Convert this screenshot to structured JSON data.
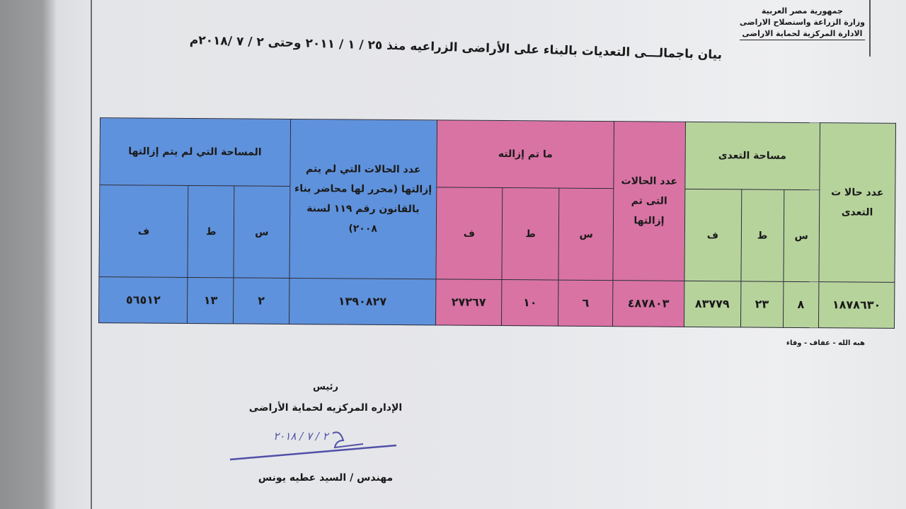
{
  "header": {
    "lines": [
      "جمهورية مصر العربية",
      "وزارة الزراعة واستصلاح الاراضى",
      "الادارة المركزية لحماية الاراضى"
    ]
  },
  "title": "بيان باجمالـــى  التعديات بالبناء على الأراضى الزراعيه منذ ٢٥ / ١ / ٢٠١١ وحتى ٢ / ٧ /٢٠١٨م",
  "table": {
    "colors": {
      "green": "#b7d39c",
      "pink": "#d973a4",
      "blue": "#5f92dc"
    },
    "headers": {
      "total_cases": "عدد حالا ت التعدى",
      "encroach_area": "مساحة التعدى",
      "removed_cases": "عدد الحالات التى تم إزالتها",
      "removed_area": "ما تم إزالته",
      "not_removed_cases": "عدد الحالات التي لم يتم إزالتها (محرر لها محاضر بناء بالقانون رقم ١١٩ لسنة ٢٠٠٨)",
      "not_removed_area": "المساحة التي لم يتم إزالتها",
      "units": {
        "s": "س",
        "t": "ط",
        "f": "ف"
      }
    },
    "row": {
      "total_cases": "١٨٧٨٦٣٠",
      "encroach_s": "٨",
      "encroach_t": "٢٣",
      "encroach_f": "٨٣٧٧٩",
      "removed_cases": "٤٨٧٨٠٣",
      "removed_s": "٦",
      "removed_t": "١٠",
      "removed_f": "٢٧٢٦٧",
      "not_removed_cases": "١٣٩٠٨٢٧",
      "not_removed_s": "٢",
      "not_removed_t": "١٣",
      "not_removed_f": "٥٦٥١٢"
    }
  },
  "note": "هبه الله - عفاف - وفاء",
  "signature": {
    "title": "رئيس",
    "dept": "الإداره المركزيه لحماية الأراضى",
    "name": "مهندس / السيد عطيه يونس",
    "handwritten_date": "٢ / ٧ / ٢٠١٨"
  }
}
